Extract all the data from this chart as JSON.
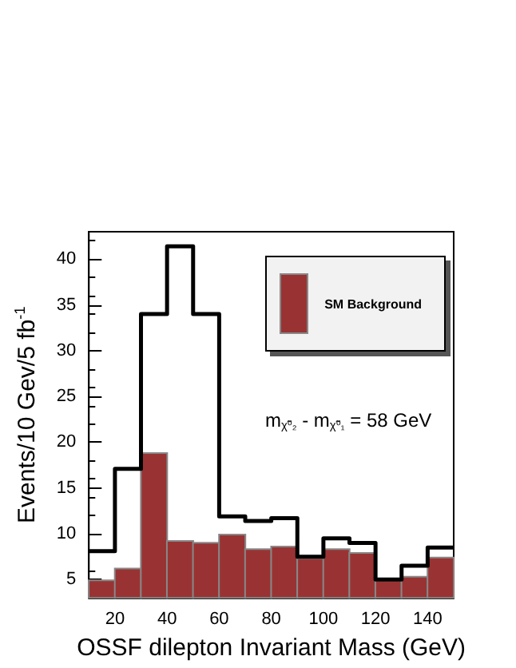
{
  "chart_data": {
    "type": "histogram",
    "xlabel": "OSSF dilepton Invariant Mass (GeV)",
    "ylabel": "Events/10 Gev/5 fb$^{-1}$",
    "bins": [
      10,
      20,
      30,
      40,
      50,
      60,
      70,
      80,
      90,
      100,
      110,
      120,
      130,
      140,
      150
    ],
    "series": [
      {
        "name": "SM Background",
        "color": "#993333",
        "values": [
          5.0,
          6.3,
          18.9,
          9.3,
          9.1,
          10.0,
          8.4,
          8.7,
          7.4,
          8.4,
          8.0,
          5.0,
          5.4,
          7.5
        ]
      },
      {
        "type": "step",
        "color": "#000000",
        "x": [
          10,
          20,
          30,
          40,
          50,
          60,
          70,
          80,
          90,
          100,
          110,
          120,
          130,
          140,
          150
        ],
        "values": [
          8.1,
          17.1,
          34.0,
          41.4,
          34.0,
          11.9,
          11.4,
          11.7,
          7.5,
          9.5,
          9.0,
          5.0,
          6.5,
          8.5,
          8.5
        ]
      }
    ],
    "annotations": [
      "m$_{χ̃⁰₂}$ - m$_{χ̃⁰₁}$ = 58 GeV"
    ],
    "xlim": [
      10,
      150
    ],
    "xticks": [
      20,
      40,
      60,
      80,
      100,
      120,
      140
    ],
    "ylim": [
      3,
      43
    ],
    "yticks": [
      5,
      10,
      15,
      20,
      25,
      30,
      35,
      40
    ],
    "grid": false,
    "legend": "top right"
  }
}
